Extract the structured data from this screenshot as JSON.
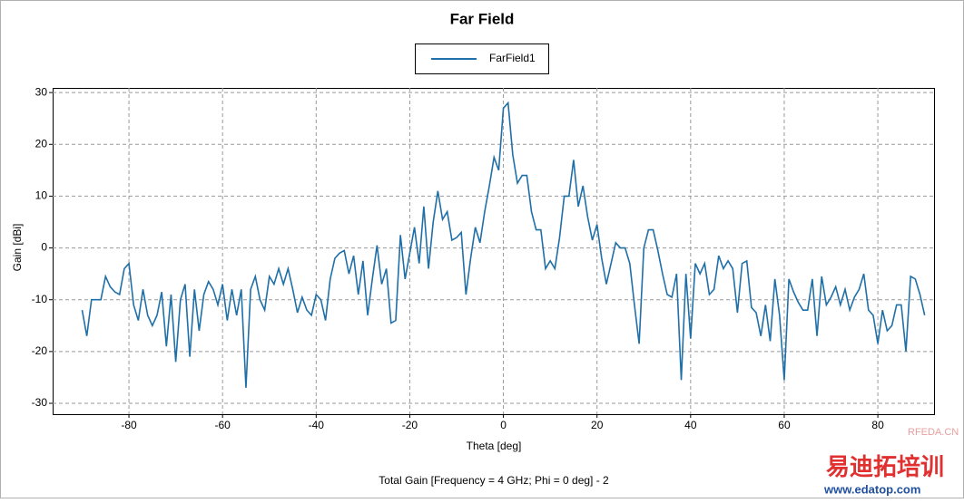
{
  "chart_data": {
    "type": "line",
    "title": "Far Field",
    "subtitle": "Total Gain [Frequency = 4 GHz; Phi = 0 deg] - 2",
    "x_label": "Theta [deg]",
    "y_label": "Gain [dBi]",
    "xlim": [
      -96.3,
      92.2
    ],
    "ylim": [
      -32.1,
      30.9
    ],
    "xticks": [
      -80,
      -60,
      -40,
      -20,
      0,
      20,
      40,
      60,
      80
    ],
    "yticks": [
      -30,
      -20,
      -10,
      0,
      10,
      20,
      30
    ],
    "grid": true,
    "legend": "top",
    "watermarks": [
      "RFEDA.CN",
      "易迪拓培训",
      "www.edatop.com"
    ],
    "x": [
      -90,
      -89,
      -88,
      -87,
      -86,
      -85,
      -84,
      -83,
      -82,
      -81,
      -80,
      -79,
      -78,
      -77,
      -76,
      -75,
      -74,
      -73,
      -72,
      -71,
      -70,
      -69,
      -68,
      -67,
      -66,
      -65,
      -64,
      -63,
      -62,
      -61,
      -60,
      -59,
      -58,
      -57,
      -56,
      -55,
      -54,
      -53,
      -52,
      -51,
      -50,
      -49,
      -48,
      -47,
      -46,
      -45,
      -44,
      -43,
      -42,
      -41,
      -40,
      -39,
      -38,
      -37,
      -36,
      -35,
      -34,
      -33,
      -32,
      -31,
      -30,
      -29,
      -28,
      -27,
      -26,
      -25,
      -24,
      -23,
      -22,
      -21,
      -20,
      -19,
      -18,
      -17,
      -16,
      -15,
      -14,
      -13,
      -12,
      -11,
      -10,
      -9,
      -8,
      -7,
      -6,
      -5,
      -4,
      -3,
      -2,
      -1,
      0,
      1,
      2,
      3,
      4,
      5,
      6,
      7,
      8,
      9,
      10,
      11,
      12,
      13,
      14,
      15,
      16,
      17,
      18,
      19,
      20,
      21,
      22,
      23,
      24,
      25,
      26,
      27,
      28,
      29,
      30,
      31,
      32,
      33,
      34,
      35,
      36,
      37,
      38,
      39,
      40,
      41,
      42,
      43,
      44,
      45,
      46,
      47,
      48,
      49,
      50,
      51,
      52,
      53,
      54,
      55,
      56,
      57,
      58,
      59,
      60,
      61,
      62,
      63,
      64,
      65,
      66,
      67,
      68,
      69,
      70,
      71,
      72,
      73,
      74,
      75,
      76,
      77,
      78,
      79,
      80,
      81,
      82,
      83,
      84,
      85,
      86,
      87,
      88,
      89,
      90
    ],
    "series": [
      {
        "name": "FarField1",
        "color": "#1f6fa8",
        "values": [
          -12,
          -17,
          -10,
          -10,
          -10,
          -5.5,
          -7.5,
          -8.5,
          -9,
          -4,
          -3,
          -11,
          -14,
          -8,
          -13,
          -15,
          -13,
          -8.5,
          -19,
          -9,
          -22,
          -10,
          -7,
          -21,
          -8,
          -16,
          -9,
          -6.5,
          -8,
          -11,
          -7,
          -14,
          -8,
          -13,
          -8,
          -27,
          -8,
          -5.5,
          -10,
          -12,
          -5.5,
          -7,
          -4,
          -7,
          -4,
          -8,
          -12.5,
          -9.5,
          -12,
          -13,
          -9,
          -10,
          -14,
          -6,
          -2,
          -1,
          -0.5,
          -5,
          -1.5,
          -9,
          -2.5,
          -13,
          -6,
          0.5,
          -7,
          -4,
          -14.5,
          -14,
          2.5,
          -6,
          -1,
          4,
          -3,
          8,
          -4,
          5,
          11,
          5.5,
          7,
          1.5,
          2,
          3,
          -9,
          -2,
          4,
          1,
          7,
          12,
          17.5,
          15,
          27,
          28,
          18,
          12.5,
          14,
          14,
          7,
          3.5,
          3.5,
          -4,
          -2.5,
          -4,
          2,
          10,
          10,
          17,
          8,
          12,
          6,
          1.5,
          4.5,
          -2,
          -7,
          -3,
          1,
          0,
          0,
          -3,
          -11,
          -18.5,
          0,
          3.5,
          3.5,
          -0.5,
          -5,
          -9,
          -9.5,
          -5,
          -25.5,
          -5,
          -17.5,
          -3,
          -5,
          -3,
          -9,
          -8,
          -1.5,
          -4,
          -2.5,
          -4,
          -12.5,
          -3,
          -2.5,
          -11.5,
          -12.5,
          -17,
          -11,
          -18,
          -6,
          -13,
          -25.5,
          -6,
          -8.5,
          -10.5,
          -12,
          -12,
          -6,
          -17,
          -5.5,
          -11,
          -9.5,
          -7.5,
          -11,
          -8,
          -12,
          -9.5,
          -8,
          -5,
          -12,
          -13,
          -18.5,
          -12,
          -16,
          -15,
          -11,
          -11,
          -20,
          -5.5,
          -6,
          -9,
          -13
        ]
      }
    ]
  }
}
